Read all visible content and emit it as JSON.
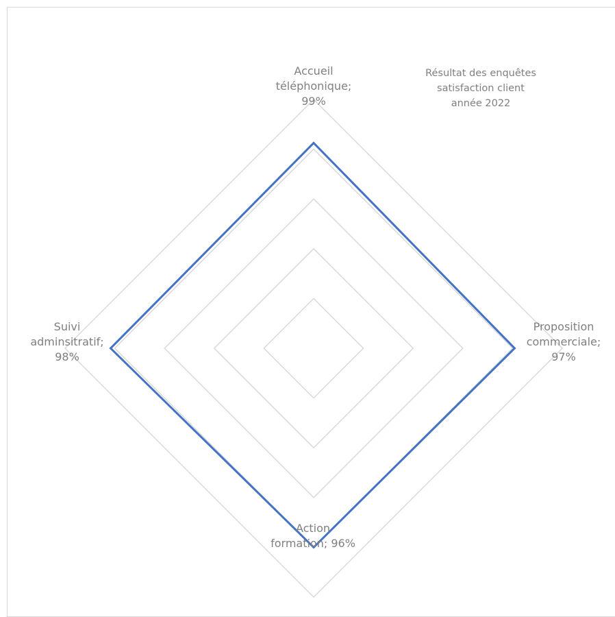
{
  "chart_data": {
    "type": "radar",
    "title": "Résultat des enquêtes\nsatisfaction client\nannée 2022",
    "categories": [
      "Accueil téléphonique",
      "Proposition commerciale",
      "Action formation",
      "Suivi adminsitratif"
    ],
    "data_labels": [
      "Accueil\ntéléphonique;\n99%",
      "Proposition\ncommerciale;\n97%",
      "Action\nformation; 96%",
      "Suivi\nadminsitratif;\n98%"
    ],
    "series": [
      {
        "values": [
          0.99,
          0.97,
          0.96,
          0.98
        ],
        "color": "#4472c4"
      }
    ],
    "rlim": [
      0,
      1.2
    ],
    "gridlines": 5,
    "grid_color": "#d9d9d9",
    "label_color": "#7f7f7f",
    "legend": false
  }
}
